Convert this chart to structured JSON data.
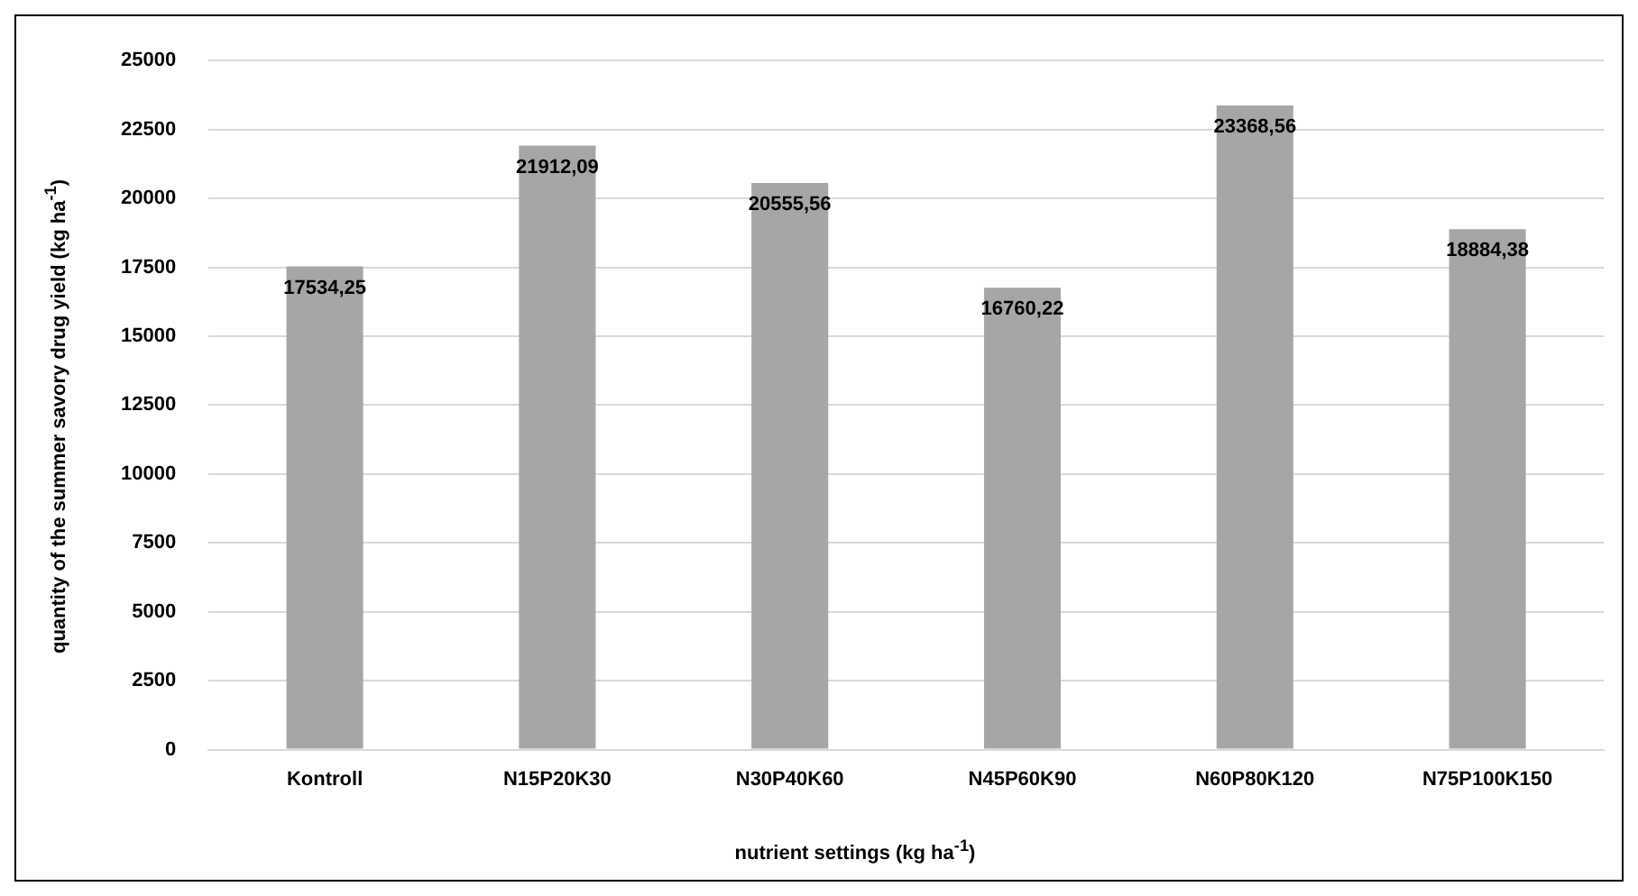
{
  "chart_data": {
    "type": "bar",
    "xlabel": "nutrient settings (kg ha$^{-1}$)",
    "ylabel": "quantity of the summer savory drug yield (kg ha$^{-1}$)",
    "categories": [
      "Kontroll",
      "N15P20K30",
      "N30P40K60",
      "N45P60K90",
      "N60P80K120",
      "N75P100K150"
    ],
    "values": [
      17534.25,
      21912.09,
      20555.56,
      16760.22,
      23368.56,
      18884.38
    ],
    "value_labels": [
      "17534,25",
      "21912,09",
      "20555,56",
      "16760,22",
      "23368,56",
      "18884,38"
    ],
    "color": "#a6a6a6",
    "ylim": [
      0,
      25000
    ],
    "yticks": [
      0,
      2500,
      5000,
      7500,
      10000,
      12500,
      15000,
      17500,
      20000,
      22500,
      25000
    ],
    "grid": "y",
    "legend": false
  }
}
